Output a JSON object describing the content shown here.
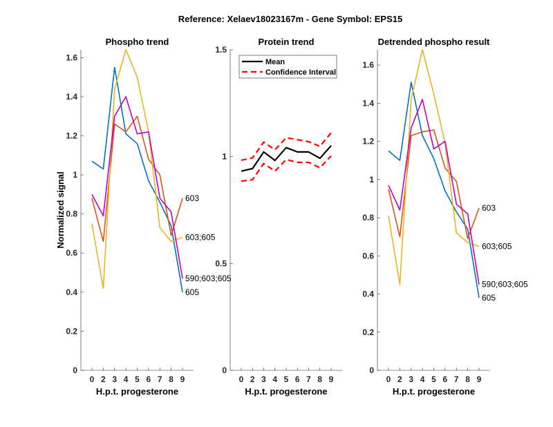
{
  "title": "Reference:  Xelaev18023167m - Gene Symbol:  EPS15",
  "chart_data": [
    {
      "type": "line",
      "title": "Phospho trend",
      "xlabel": "H.p.t. progesterone",
      "ylabel": "Normalized signal",
      "categories": [
        "0",
        "2",
        "3",
        "4",
        "5",
        "6",
        "7",
        "8",
        "9"
      ],
      "ylim": [
        0,
        1.64
      ],
      "yticks": [
        0,
        0.2,
        0.4,
        0.6,
        0.8,
        1,
        1.2,
        1.4,
        1.6
      ],
      "ytick_labels": [
        "0",
        "0.2",
        "0.4",
        "0.6",
        "0.8",
        "1",
        "1.2",
        "1.4",
        "1.6"
      ],
      "series": [
        {
          "name": "605",
          "color": "#0072BD",
          "values": [
            1.07,
            1.03,
            1.55,
            1.21,
            1.16,
            0.97,
            0.86,
            0.74,
            0.4
          ]
        },
        {
          "name": "603",
          "color": "#D95319",
          "values": [
            0.88,
            0.66,
            1.26,
            1.22,
            1.3,
            1.08,
            1.0,
            0.69,
            0.88
          ]
        },
        {
          "name": "603;605",
          "color": "#EDB120",
          "values": [
            0.75,
            0.42,
            1.44,
            1.64,
            1.5,
            1.22,
            0.73,
            0.66,
            0.68
          ]
        },
        {
          "name": "590;603;605",
          "color": "#C000C0",
          "values": [
            0.9,
            0.79,
            1.3,
            1.4,
            1.21,
            1.22,
            0.88,
            0.81,
            0.47
          ]
        }
      ]
    },
    {
      "type": "line",
      "title": "Protein trend",
      "xlabel": "H.p.t. progesterone",
      "ylabel": "",
      "categories": [
        "0",
        "2",
        "3",
        "4",
        "5",
        "6",
        "7",
        "8",
        "9"
      ],
      "ylim": [
        0,
        1.5
      ],
      "yticks": [
        0,
        0.5,
        1,
        1.5
      ],
      "ytick_labels": [
        "0",
        "0.5",
        "1",
        "1.5"
      ],
      "legend": {
        "placement": "top-left",
        "entries": [
          "Mean",
          "Confidence Interval"
        ]
      },
      "series": [
        {
          "name": "Mean",
          "color": "#000000",
          "style": "solid",
          "values": [
            0.932,
            0.944,
            1.022,
            0.982,
            1.042,
            1.022,
            1.022,
            0.992,
            1.051
          ]
        },
        {
          "name": "Confidence Interval (upper)",
          "color": "#FF0000",
          "style": "dashed",
          "values": [
            0.983,
            0.994,
            1.068,
            1.032,
            1.088,
            1.079,
            1.07,
            1.048,
            1.111
          ]
        },
        {
          "name": "Confidence Interval (lower)",
          "color": "#FF0000",
          "style": "dashed",
          "values": [
            0.885,
            0.892,
            0.968,
            0.932,
            0.986,
            0.973,
            0.973,
            0.948,
            1.003
          ]
        }
      ]
    },
    {
      "type": "line",
      "title": "Detrended phospho result",
      "xlabel": "H.p.t. progesterone",
      "ylabel": "",
      "categories": [
        "0",
        "2",
        "3",
        "4",
        "5",
        "6",
        "7",
        "8",
        "9"
      ],
      "ylim": [
        0,
        1.68
      ],
      "yticks": [
        0,
        0.2,
        0.4,
        0.6,
        0.8,
        1,
        1.2,
        1.4,
        1.6
      ],
      "ytick_labels": [
        "0",
        "0.2",
        "0.4",
        "0.6",
        "0.8",
        "1",
        "1.2",
        "1.4",
        "1.6"
      ],
      "series": [
        {
          "name": "605",
          "color": "#0072BD",
          "values": [
            1.15,
            1.1,
            1.51,
            1.23,
            1.11,
            0.94,
            0.83,
            0.74,
            0.38
          ]
        },
        {
          "name": "603",
          "color": "#D95319",
          "values": [
            0.95,
            0.7,
            1.23,
            1.25,
            1.26,
            1.06,
            0.99,
            0.69,
            0.85
          ]
        },
        {
          "name": "603;605",
          "color": "#EDB120",
          "values": [
            0.81,
            0.45,
            1.42,
            1.68,
            1.45,
            1.19,
            0.72,
            0.67,
            0.65
          ]
        },
        {
          "name": "590;603;605",
          "color": "#C000C0",
          "values": [
            0.97,
            0.84,
            1.27,
            1.42,
            1.16,
            1.2,
            0.87,
            0.82,
            0.45
          ]
        }
      ]
    }
  ]
}
